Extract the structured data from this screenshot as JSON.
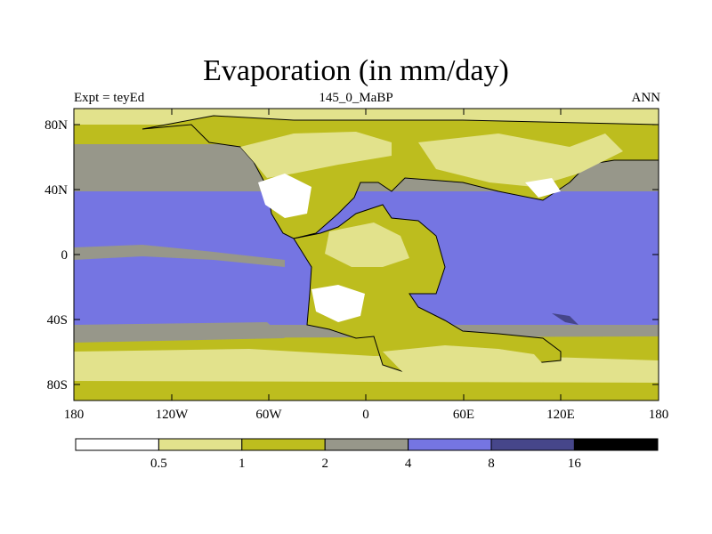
{
  "title": "Evaporation (in mm/day)",
  "subtitle_left": "Expt = teyEd",
  "subtitle_center": "145_0_MaBP",
  "subtitle_right": "ANN",
  "y_ticks": [
    "80N",
    "40N",
    "0",
    "40S",
    "80S"
  ],
  "x_ticks": [
    "180",
    "120W",
    "60W",
    "0",
    "60E",
    "120E",
    "180"
  ],
  "colorbar": {
    "labels": [
      "0.5",
      "1",
      "2",
      "4",
      "8",
      "16"
    ],
    "colors": [
      "#ffffff",
      "#e2e28c",
      "#bdbd1e",
      "#97978a",
      "#7575e2",
      "#46468a",
      "#000000"
    ]
  },
  "map_colors": {
    "ocean_tropics": "#7575e2",
    "ocean_mid": "#97978a",
    "land_dry": "#bdbd1e",
    "land_drier": "#e2e28c",
    "desert": "#ffffff",
    "deep": "#46468a",
    "coast": "#000000"
  }
}
